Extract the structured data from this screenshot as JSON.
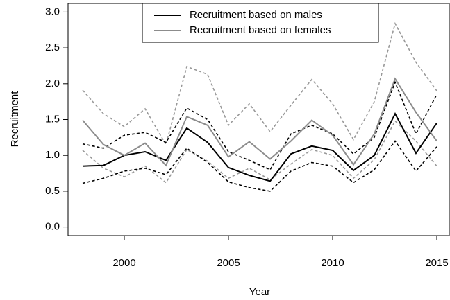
{
  "chart_data": {
    "type": "line",
    "xlabel": "Year",
    "ylabel": "Recruitment",
    "x": [
      1998,
      1999,
      2000,
      2001,
      2002,
      2003,
      2004,
      2005,
      2006,
      2007,
      2008,
      2009,
      2010,
      2011,
      2012,
      2013,
      2014,
      2015
    ],
    "series": [
      {
        "color": "#999999",
        "dash": true,
        "values": [
          1.91,
          1.58,
          1.4,
          1.65,
          1.15,
          2.24,
          2.13,
          1.42,
          1.72,
          1.33,
          1.7,
          2.06,
          1.72,
          1.22,
          1.75,
          2.84,
          2.3,
          1.9
        ]
      },
      {
        "color": "#999999",
        "dash": true,
        "values": [
          1.07,
          0.82,
          0.7,
          0.85,
          0.62,
          1.08,
          0.92,
          0.68,
          0.82,
          0.66,
          0.88,
          1.08,
          1.0,
          0.68,
          0.94,
          1.48,
          1.2,
          0.85
        ]
      },
      {
        "color": "#000000",
        "dash": true,
        "values": [
          1.16,
          1.1,
          1.28,
          1.32,
          1.18,
          1.66,
          1.5,
          1.05,
          0.93,
          0.8,
          1.3,
          1.42,
          1.3,
          1.02,
          1.25,
          2.02,
          1.3,
          1.85
        ]
      },
      {
        "color": "#000000",
        "dash": true,
        "values": [
          0.61,
          0.68,
          0.78,
          0.82,
          0.73,
          1.1,
          0.9,
          0.63,
          0.55,
          0.5,
          0.78,
          0.9,
          0.85,
          0.62,
          0.8,
          1.2,
          0.78,
          1.12
        ]
      },
      {
        "name": "Recruitment based on males",
        "color": "#000000",
        "values": [
          0.85,
          0.86,
          1.0,
          1.05,
          0.93,
          1.38,
          1.18,
          0.83,
          0.72,
          0.64,
          1.02,
          1.13,
          1.07,
          0.79,
          1.0,
          1.58,
          1.03,
          1.45
        ]
      },
      {
        "name": "Recruitment based on females",
        "color": "#8c8c8c",
        "values": [
          1.49,
          1.15,
          1.0,
          1.17,
          0.86,
          1.54,
          1.42,
          0.98,
          1.19,
          0.95,
          1.2,
          1.49,
          1.28,
          0.87,
          1.3,
          2.07,
          1.6,
          1.2
        ]
      }
    ],
    "xlim": [
      1997.3,
      2015.6
    ],
    "xticks": [
      2000,
      2005,
      2010,
      2015
    ],
    "ylim": [
      -0.12,
      3.12
    ],
    "yticks": [
      {
        "value": 0,
        "label": "0.0"
      },
      0.5,
      {
        "value": 1,
        "label": "1.0"
      },
      1.5,
      {
        "value": 2,
        "label": "2.0"
      },
      2.5,
      {
        "value": 3,
        "label": "3.0"
      }
    ],
    "grid": false,
    "legend": "top"
  }
}
